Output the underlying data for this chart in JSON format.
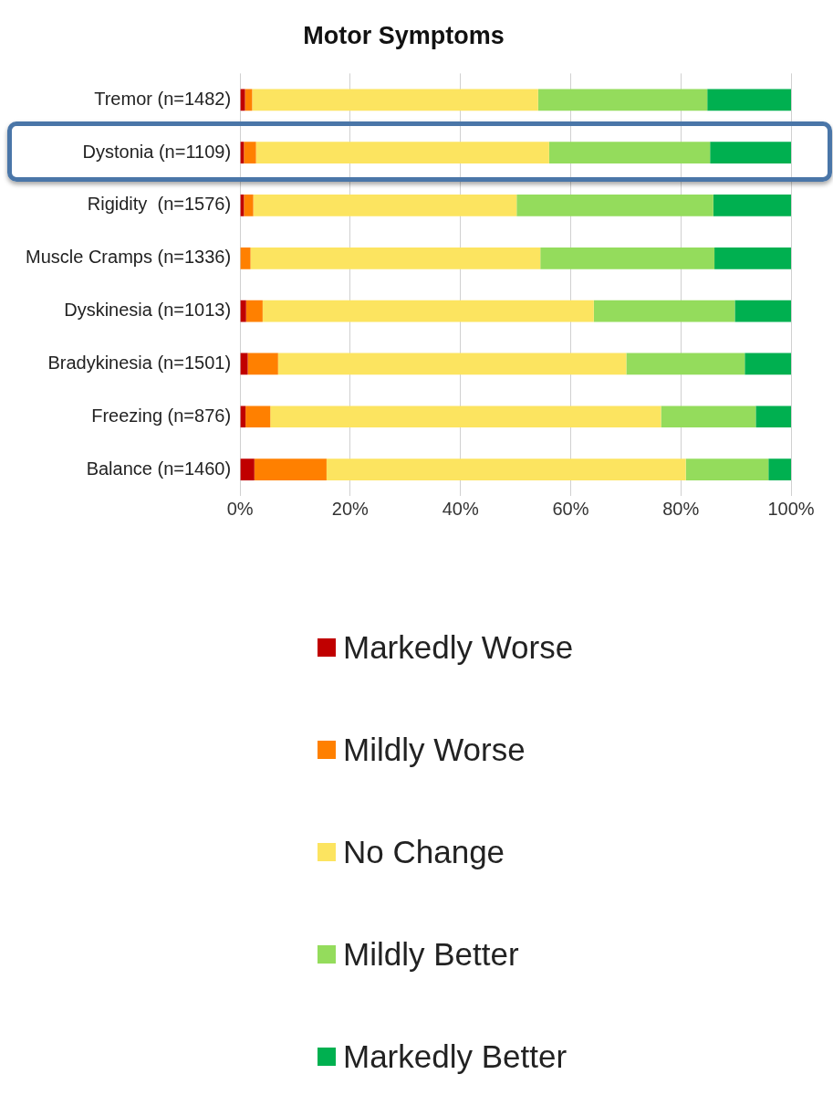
{
  "chart_data": {
    "type": "bar",
    "title": "Motor Symptoms",
    "orientation": "horizontal",
    "stacked": true,
    "categories": [
      "Tremor (n=1482)",
      "Dystonia (n=1109)",
      "Rigidity  (n=1576)",
      "Muscle Cramps (n=1336)",
      "Dyskinesia (n=1013)",
      "Bradykinesia (n=1501)",
      "Freezing (n=876)",
      "Balance (n=1460)"
    ],
    "series": [
      {
        "name": "Markedly Worse",
        "color": "#c00000",
        "values": [
          0.9,
          0.7,
          0.7,
          0,
          1.1,
          1.4,
          1.0,
          2.6
        ]
      },
      {
        "name": "Mildly Worse",
        "color": "#ff8000",
        "values": [
          1.3,
          2.2,
          1.7,
          1.9,
          3.0,
          5.5,
          4.5,
          13.1
        ]
      },
      {
        "name": "No Change",
        "color": "#fce460",
        "values": [
          51.9,
          53.2,
          47.8,
          52.6,
          60.1,
          63.2,
          70.9,
          65.2
        ]
      },
      {
        "name": "Mildly Better",
        "color": "#94dc5c",
        "values": [
          30.7,
          29.2,
          35.7,
          31.6,
          25.6,
          21.5,
          17.2,
          15.0
        ]
      },
      {
        "name": "Markedly Better",
        "color": "#00b050",
        "values": [
          15.2,
          14.7,
          14.1,
          13.9,
          10.2,
          8.4,
          6.4,
          4.1
        ]
      }
    ],
    "xlim": [
      0,
      100
    ],
    "xticks": [
      {
        "value": 0,
        "label": "0%"
      },
      {
        "value": 20,
        "label": "20%"
      },
      {
        "value": 40,
        "label": "40%"
      },
      {
        "value": 60,
        "label": "60%"
      },
      {
        "value": 80,
        "label": "80%"
      },
      {
        "value": 100,
        "label": "100%"
      }
    ],
    "grid": "x",
    "legend": "bottom"
  }
}
